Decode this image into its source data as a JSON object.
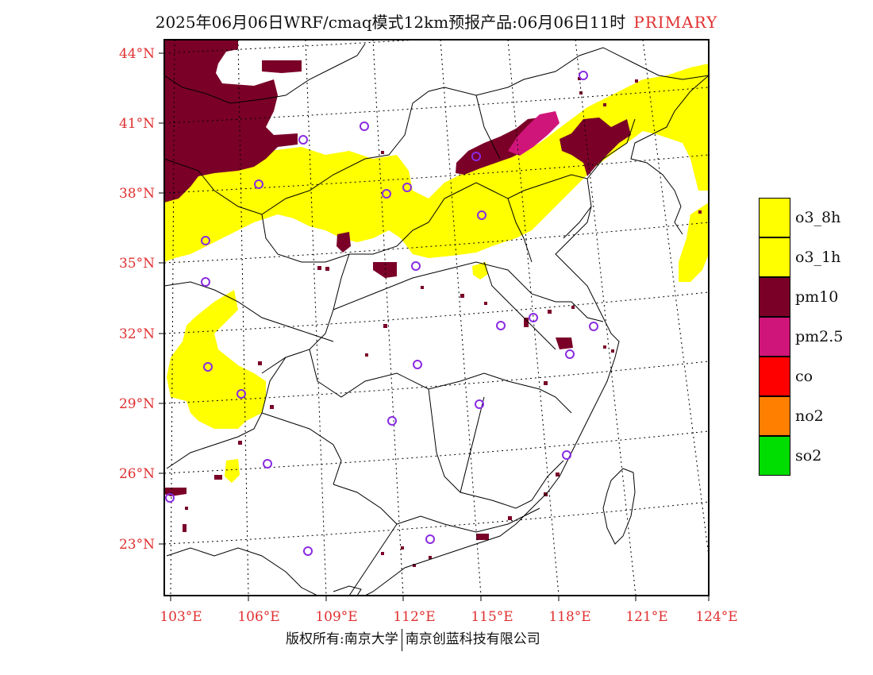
{
  "title": {
    "main": "2025年06月06日WRF/cmaq模式12km预报产品:06月06日11时",
    "tag": "PRIMARY"
  },
  "colors": {
    "o3": "#ffff00",
    "pm10": "#7a0028",
    "pm25": "#d0157a",
    "co": "#ff0000",
    "no2": "#ff7f00",
    "so2": "#00dd00",
    "label_red": "#e03030",
    "station_circle": "#8a2be2"
  },
  "map": {
    "lat_labels": [
      "44°N",
      "41°N",
      "38°N",
      "35°N",
      "32°N",
      "29°N",
      "26°N",
      "23°N"
    ],
    "lon_labels": [
      "103°E",
      "106°E",
      "109°E",
      "112°E",
      "115°E",
      "118°E",
      "121°E",
      "124°E"
    ]
  },
  "legend": [
    {
      "label": "o3_8h",
      "color": "#ffff00"
    },
    {
      "label": "o3_1h",
      "color": "#ffff00"
    },
    {
      "label": "pm10",
      "color": "#7a0028"
    },
    {
      "label": "pm2.5",
      "color": "#d0157a"
    },
    {
      "label": "co",
      "color": "#ff0000"
    },
    {
      "label": "no2",
      "color": "#ff7f00"
    },
    {
      "label": "so2",
      "color": "#00dd00"
    }
  ],
  "copyright": {
    "left": "版权所有:南京大学",
    "right": "南京创蓝科技有限公司"
  }
}
